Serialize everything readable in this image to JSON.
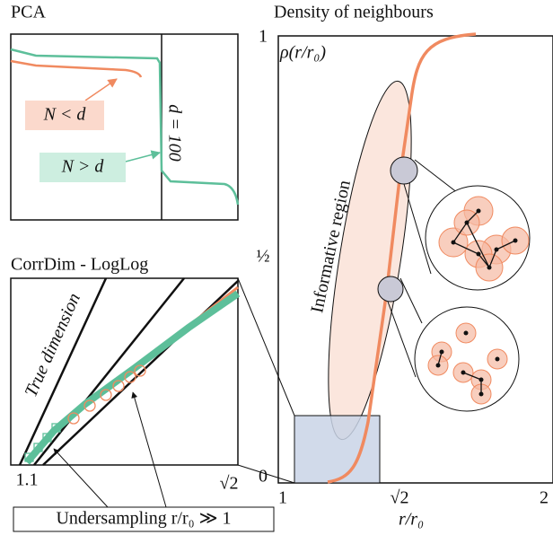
{
  "panels": [
    {
      "title": "PCA",
      "labels": [
        "N < d",
        "N > d",
        "d = 100"
      ]
    },
    {
      "title": "CorrDim - LogLog",
      "xtick_labels": [
        "1.1",
        "√2"
      ],
      "annotation": "True dimension"
    },
    {
      "title": "Density of neighbours",
      "y_label": "ρ(r/r₀)",
      "x_label": "r/r₀",
      "yticks": [
        "0",
        "½",
        "1"
      ],
      "xticks": [
        "1",
        "√2",
        "2"
      ],
      "annotation": "Informative region"
    }
  ],
  "footer": "Undersampling r/r₀ ≫ 1"
}
